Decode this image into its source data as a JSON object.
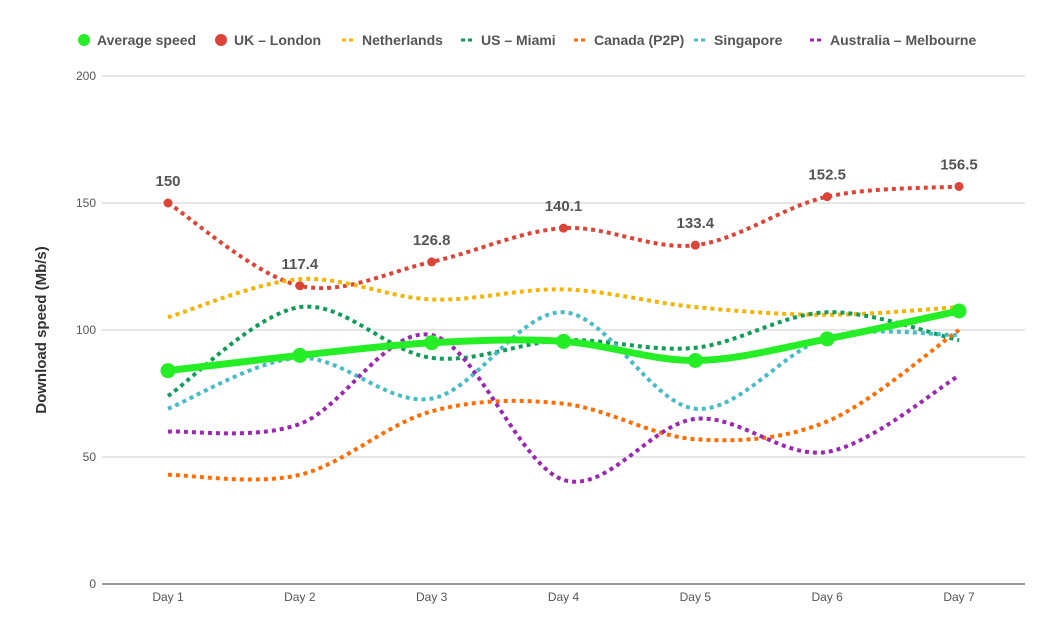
{
  "chart_data": {
    "type": "line",
    "title": "",
    "xlabel": "",
    "ylabel": "Download speed (Mb/s)",
    "ylim": [
      0,
      200
    ],
    "yticks": [
      0,
      50,
      100,
      150,
      200
    ],
    "grid": true,
    "legend_position": "top",
    "categories": [
      "Day 1",
      "Day 2",
      "Day 3",
      "Day 4",
      "Day 5",
      "Day 6",
      "Day 7"
    ],
    "series": [
      {
        "name": "Average speed",
        "color": "#26ee26",
        "style": "solid",
        "markers": true,
        "values": [
          84,
          90,
          95,
          95.5,
          88,
          96.5,
          107.5
        ]
      },
      {
        "name": "UK – London",
        "color": "#db4437",
        "style": "dotted",
        "markers": true,
        "data_labels": [
          "150",
          "117.4",
          "126.8",
          "140.1",
          "133.4",
          "152.5",
          "156.5"
        ],
        "values": [
          150,
          117.4,
          126.8,
          140.1,
          133.4,
          152.5,
          156.5
        ]
      },
      {
        "name": "Netherlands",
        "color": "#f4b400",
        "style": "dotted",
        "markers": false,
        "values": [
          105,
          120,
          112,
          116,
          109,
          106,
          109
        ]
      },
      {
        "name": "US – Miami",
        "color": "#0f9d58",
        "style": "dotted",
        "markers": false,
        "values": [
          74,
          109,
          89,
          96,
          93,
          107,
          96
        ]
      },
      {
        "name": "Canada (P2P)",
        "color": "#ff6d00",
        "style": "dotted",
        "markers": false,
        "values": [
          43,
          43,
          68,
          71,
          57,
          64,
          100
        ]
      },
      {
        "name": "Singapore",
        "color": "#46bdc6",
        "style": "dotted",
        "markers": false,
        "values": [
          69,
          89,
          73,
          107,
          69,
          97,
          98
        ]
      },
      {
        "name": "Australia – Melbourne",
        "color": "#9c27b0",
        "style": "dotted",
        "markers": false,
        "values": [
          60,
          63,
          98,
          41,
          65,
          52,
          82
        ]
      }
    ]
  }
}
